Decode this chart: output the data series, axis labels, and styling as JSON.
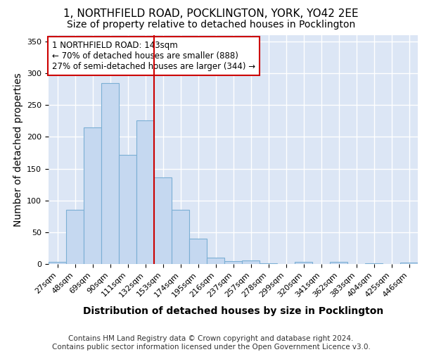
{
  "title_line1": "1, NORTHFIELD ROAD, POCKLINGTON, YORK, YO42 2EE",
  "title_line2": "Size of property relative to detached houses in Pocklington",
  "xlabel": "Distribution of detached houses by size in Pocklington",
  "ylabel": "Number of detached properties",
  "categories": [
    "27sqm",
    "48sqm",
    "69sqm",
    "90sqm",
    "111sqm",
    "132sqm",
    "153sqm",
    "174sqm",
    "195sqm",
    "216sqm",
    "237sqm",
    "257sqm",
    "278sqm",
    "299sqm",
    "320sqm",
    "341sqm",
    "362sqm",
    "383sqm",
    "404sqm",
    "425sqm",
    "446sqm"
  ],
  "values": [
    3,
    85,
    215,
    285,
    172,
    226,
    136,
    85,
    40,
    10,
    4,
    5,
    1,
    0,
    3,
    0,
    3,
    0,
    1,
    0,
    2
  ],
  "bar_color": "#c5d8f0",
  "bar_edge_color": "#7bafd4",
  "vline_x": 5.5,
  "vline_color": "#cc0000",
  "annotation_text": "1 NORTHFIELD ROAD: 143sqm\n← 70% of detached houses are smaller (888)\n27% of semi-detached houses are larger (344) →",
  "annotation_box_color": "#ffffff",
  "annotation_edge_color": "#cc0000",
  "ylim": [
    0,
    360
  ],
  "yticks": [
    0,
    50,
    100,
    150,
    200,
    250,
    300,
    350
  ],
  "bg_color": "#dce6f5",
  "grid_color": "#ffffff",
  "footer_text": "Contains HM Land Registry data © Crown copyright and database right 2024.\nContains public sector information licensed under the Open Government Licence v3.0.",
  "title1_fontsize": 11,
  "title2_fontsize": 10,
  "axis_label_fontsize": 10,
  "tick_fontsize": 8,
  "annotation_fontsize": 8.5,
  "footer_fontsize": 7.5
}
